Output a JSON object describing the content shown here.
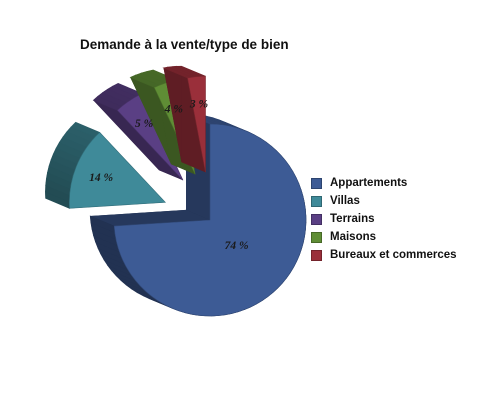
{
  "chart_data": {
    "type": "pie",
    "title": "Demande à la vente/type de bien",
    "categories": [
      "Appartements",
      "Villas",
      "Terrains",
      "Maisons",
      "Bureaux et commerces"
    ],
    "values": [
      74,
      14,
      5,
      4,
      3
    ],
    "value_labels": [
      "74 %",
      "14 %",
      "5 %",
      "4 %",
      "3 %"
    ],
    "colors": [
      "#3d5b95",
      "#3f8a99",
      "#5a3f84",
      "#5f8d35",
      "#9a2f3a"
    ],
    "exploded": [
      false,
      true,
      true,
      true,
      true
    ],
    "style": "3d",
    "legend_position": "right"
  }
}
